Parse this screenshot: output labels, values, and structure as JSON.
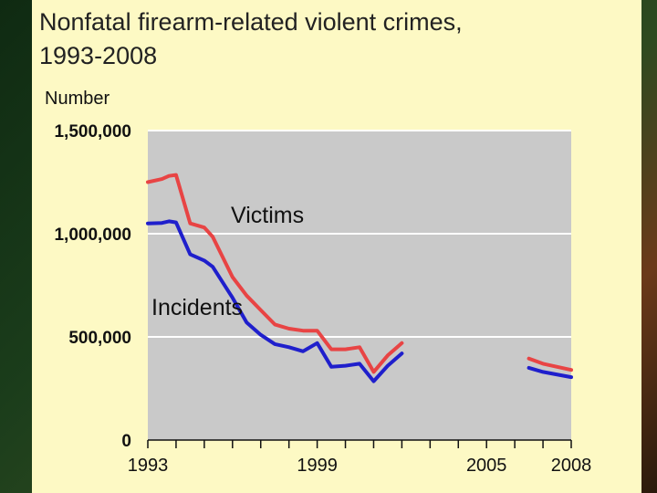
{
  "chart_data": {
    "type": "line",
    "title": "Nonfatal firearm-related violent crimes, 1993-2008",
    "title_lines": [
      "Nonfatal firearm-related violent crimes,",
      "1993-2008"
    ],
    "ylabel": "Number",
    "xlabel": "",
    "xlim": [
      1993,
      2008
    ],
    "ylim": [
      0,
      1500000
    ],
    "yticks": [
      0,
      500000,
      1000000,
      1500000
    ],
    "ytick_labels": [
      "0",
      "500,000",
      "1,000,000",
      "1,500,000"
    ],
    "xtick_labels": [
      {
        "x": 1993,
        "label": "1993"
      },
      {
        "x": 1999,
        "label": "1999"
      },
      {
        "x": 2005,
        "label": "2005"
      },
      {
        "x": 2008,
        "label": "2008"
      }
    ],
    "xtick_marks": [
      1993,
      1994,
      1995,
      1996,
      1997,
      1998,
      1999,
      2000,
      2001,
      2002,
      2003,
      2004,
      2005,
      2006,
      2007,
      2008
    ],
    "grid": true,
    "plot_background": "#c9c9c9",
    "series": [
      {
        "name": "Victims",
        "color": "#e84444",
        "segments": [
          [
            [
              1993,
              1250000
            ],
            [
              1993.5,
              1265000
            ],
            [
              1993.75,
              1280000
            ],
            [
              1994,
              1285000
            ],
            [
              1994.5,
              1050000
            ],
            [
              1995,
              1030000
            ],
            [
              1995.3,
              985000
            ],
            [
              1996,
              790000
            ],
            [
              1996.5,
              700000
            ],
            [
              1997,
              630000
            ],
            [
              1997.5,
              560000
            ],
            [
              1998,
              540000
            ],
            [
              1998.5,
              530000
            ],
            [
              1999,
              530000
            ],
            [
              1999.5,
              440000
            ],
            [
              2000,
              440000
            ],
            [
              2000.5,
              450000
            ],
            [
              2001,
              330000
            ],
            [
              2001.5,
              410000
            ],
            [
              2002,
              470000
            ]
          ],
          [
            [
              2006.5,
              395000
            ],
            [
              2007,
              370000
            ],
            [
              2008,
              340000
            ]
          ]
        ]
      },
      {
        "name": "Incidents",
        "color": "#1f1fcc",
        "segments": [
          [
            [
              1993,
              1050000
            ],
            [
              1993.5,
              1052000
            ],
            [
              1993.75,
              1060000
            ],
            [
              1994,
              1055000
            ],
            [
              1994.5,
              900000
            ],
            [
              1995,
              870000
            ],
            [
              1995.3,
              840000
            ],
            [
              1996,
              690000
            ],
            [
              1996.5,
              570000
            ],
            [
              1997,
              510000
            ],
            [
              1997.5,
              465000
            ],
            [
              1998,
              450000
            ],
            [
              1998.5,
              430000
            ],
            [
              1999,
              470000
            ],
            [
              1999.5,
              355000
            ],
            [
              2000,
              360000
            ],
            [
              2000.5,
              370000
            ],
            [
              2001,
              285000
            ],
            [
              2001.5,
              360000
            ],
            [
              2002,
              420000
            ]
          ],
          [
            [
              2006.5,
              350000
            ],
            [
              2007,
              330000
            ],
            [
              2008,
              305000
            ]
          ]
        ]
      }
    ]
  }
}
